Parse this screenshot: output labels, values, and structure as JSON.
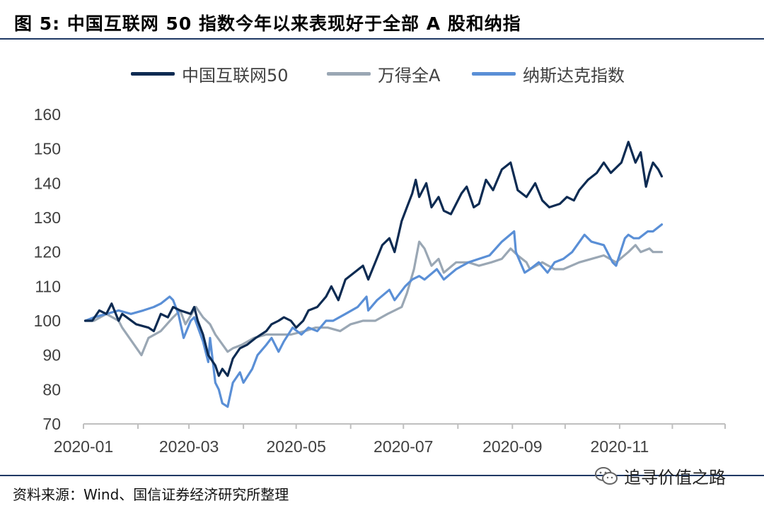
{
  "title": "图 5: 中国互联网 50 指数今年以来表现好于全部 A 股和纳指",
  "source": "资料来源：Wind、国信证券经济研究所整理",
  "watermark": {
    "text": "追寻价值之路",
    "icon": "wechat-icon"
  },
  "chart_data": {
    "type": "line",
    "legend_position": "top",
    "grid": false,
    "ylim": [
      70,
      160
    ],
    "yticks": [
      70,
      80,
      90,
      100,
      110,
      120,
      130,
      140,
      150,
      160
    ],
    "xlim": [
      "2020-01-01",
      "2020-12-31"
    ],
    "xticks": [
      "2020-01-01",
      "2020-03-01",
      "2020-05-01",
      "2020-07-01",
      "2020-09-01",
      "2020-11-01"
    ],
    "xtick_labels": [
      "2020-01",
      "2020-03",
      "2020-05",
      "2020-07",
      "2020-09",
      "2020-11"
    ],
    "series": [
      {
        "name": "中国互联网50",
        "color": "#0d2b52",
        "points": [
          [
            "2020-01-02",
            100
          ],
          [
            "2020-01-06",
            100
          ],
          [
            "2020-01-10",
            103
          ],
          [
            "2020-01-14",
            102
          ],
          [
            "2020-01-17",
            105
          ],
          [
            "2020-01-21",
            100
          ],
          [
            "2020-01-23",
            102
          ],
          [
            "2020-01-31",
            99
          ],
          [
            "2020-02-07",
            98
          ],
          [
            "2020-02-10",
            97
          ],
          [
            "2020-02-14",
            102
          ],
          [
            "2020-02-18",
            101
          ],
          [
            "2020-02-21",
            104
          ],
          [
            "2020-02-25",
            103
          ],
          [
            "2020-03-02",
            102
          ],
          [
            "2020-03-04",
            104
          ],
          [
            "2020-03-06",
            100
          ],
          [
            "2020-03-09",
            96
          ],
          [
            "2020-03-12",
            90
          ],
          [
            "2020-03-16",
            87
          ],
          [
            "2020-03-18",
            84
          ],
          [
            "2020-03-20",
            86
          ],
          [
            "2020-03-23",
            84
          ],
          [
            "2020-03-26",
            89
          ],
          [
            "2020-03-30",
            92
          ],
          [
            "2020-04-03",
            93
          ],
          [
            "2020-04-08",
            95
          ],
          [
            "2020-04-14",
            97
          ],
          [
            "2020-04-17",
            99
          ],
          [
            "2020-04-21",
            100
          ],
          [
            "2020-04-24",
            101
          ],
          [
            "2020-04-28",
            100
          ],
          [
            "2020-05-01",
            98
          ],
          [
            "2020-05-05",
            100
          ],
          [
            "2020-05-08",
            103
          ],
          [
            "2020-05-13",
            104
          ],
          [
            "2020-05-18",
            107
          ],
          [
            "2020-05-21",
            110
          ],
          [
            "2020-05-25",
            106
          ],
          [
            "2020-05-29",
            112
          ],
          [
            "2020-06-03",
            114
          ],
          [
            "2020-06-08",
            116
          ],
          [
            "2020-06-11",
            112
          ],
          [
            "2020-06-15",
            117
          ],
          [
            "2020-06-19",
            122
          ],
          [
            "2020-06-23",
            124
          ],
          [
            "2020-06-26",
            120
          ],
          [
            "2020-06-30",
            129
          ],
          [
            "2020-07-03",
            133
          ],
          [
            "2020-07-06",
            137
          ],
          [
            "2020-07-08",
            141
          ],
          [
            "2020-07-10",
            136
          ],
          [
            "2020-07-14",
            140
          ],
          [
            "2020-07-17",
            133
          ],
          [
            "2020-07-21",
            136
          ],
          [
            "2020-07-24",
            132
          ],
          [
            "2020-07-28",
            131
          ],
          [
            "2020-08-03",
            137
          ],
          [
            "2020-08-06",
            139
          ],
          [
            "2020-08-10",
            133
          ],
          [
            "2020-08-13",
            134
          ],
          [
            "2020-08-17",
            141
          ],
          [
            "2020-08-21",
            138
          ],
          [
            "2020-08-26",
            144
          ],
          [
            "2020-08-31",
            146
          ],
          [
            "2020-09-04",
            138
          ],
          [
            "2020-09-09",
            136
          ],
          [
            "2020-09-14",
            140
          ],
          [
            "2020-09-18",
            135
          ],
          [
            "2020-09-22",
            133
          ],
          [
            "2020-09-28",
            134
          ],
          [
            "2020-10-02",
            136
          ],
          [
            "2020-10-06",
            135
          ],
          [
            "2020-10-09",
            138
          ],
          [
            "2020-10-14",
            141
          ],
          [
            "2020-10-19",
            143
          ],
          [
            "2020-10-23",
            146
          ],
          [
            "2020-10-27",
            143
          ],
          [
            "2020-11-02",
            146
          ],
          [
            "2020-11-06",
            152
          ],
          [
            "2020-11-10",
            146
          ],
          [
            "2020-11-13",
            149
          ],
          [
            "2020-11-16",
            139
          ],
          [
            "2020-11-18",
            143
          ],
          [
            "2020-11-20",
            146
          ],
          [
            "2020-11-23",
            144
          ],
          [
            "2020-11-25",
            142
          ]
        ]
      },
      {
        "name": "万得全A",
        "color": "#9aa7b4",
        "points": [
          [
            "2020-01-02",
            100
          ],
          [
            "2020-01-07",
            100
          ],
          [
            "2020-01-14",
            102
          ],
          [
            "2020-01-21",
            100
          ],
          [
            "2020-01-23",
            98
          ],
          [
            "2020-02-03",
            90
          ],
          [
            "2020-02-07",
            95
          ],
          [
            "2020-02-14",
            97
          ],
          [
            "2020-02-21",
            101
          ],
          [
            "2020-02-25",
            103
          ],
          [
            "2020-02-28",
            99
          ],
          [
            "2020-03-05",
            104
          ],
          [
            "2020-03-09",
            101
          ],
          [
            "2020-03-13",
            99
          ],
          [
            "2020-03-16",
            96
          ],
          [
            "2020-03-23",
            91
          ],
          [
            "2020-03-26",
            92
          ],
          [
            "2020-03-31",
            93
          ],
          [
            "2020-04-07",
            95
          ],
          [
            "2020-04-14",
            96
          ],
          [
            "2020-04-21",
            96
          ],
          [
            "2020-04-28",
            96
          ],
          [
            "2020-05-06",
            97
          ],
          [
            "2020-05-12",
            98
          ],
          [
            "2020-05-19",
            98
          ],
          [
            "2020-05-26",
            97
          ],
          [
            "2020-06-01",
            99
          ],
          [
            "2020-06-08",
            100
          ],
          [
            "2020-06-15",
            100
          ],
          [
            "2020-06-22",
            102
          ],
          [
            "2020-06-30",
            104
          ],
          [
            "2020-07-03",
            108
          ],
          [
            "2020-07-07",
            115
          ],
          [
            "2020-07-10",
            123
          ],
          [
            "2020-07-13",
            121
          ],
          [
            "2020-07-17",
            116
          ],
          [
            "2020-07-21",
            118
          ],
          [
            "2020-07-24",
            114
          ],
          [
            "2020-07-31",
            117
          ],
          [
            "2020-08-07",
            117
          ],
          [
            "2020-08-13",
            116
          ],
          [
            "2020-08-20",
            117
          ],
          [
            "2020-08-26",
            118
          ],
          [
            "2020-08-31",
            121
          ],
          [
            "2020-09-04",
            119
          ],
          [
            "2020-09-09",
            117
          ],
          [
            "2020-09-11",
            115
          ],
          [
            "2020-09-18",
            117
          ],
          [
            "2020-09-25",
            115
          ],
          [
            "2020-09-30",
            115
          ],
          [
            "2020-10-09",
            117
          ],
          [
            "2020-10-16",
            118
          ],
          [
            "2020-10-23",
            119
          ],
          [
            "2020-10-30",
            117
          ],
          [
            "2020-11-06",
            120
          ],
          [
            "2020-11-10",
            122
          ],
          [
            "2020-11-13",
            120
          ],
          [
            "2020-11-18",
            121
          ],
          [
            "2020-11-20",
            120
          ],
          [
            "2020-11-25",
            120
          ]
        ]
      },
      {
        "name": "纳斯达克指数",
        "color": "#5a8fd6",
        "points": [
          [
            "2020-01-02",
            100
          ],
          [
            "2020-01-07",
            101
          ],
          [
            "2020-01-14",
            102
          ],
          [
            "2020-01-21",
            103
          ],
          [
            "2020-01-28",
            102
          ],
          [
            "2020-02-04",
            103
          ],
          [
            "2020-02-10",
            104
          ],
          [
            "2020-02-14",
            105
          ],
          [
            "2020-02-19",
            107
          ],
          [
            "2020-02-21",
            106
          ],
          [
            "2020-02-24",
            102
          ],
          [
            "2020-02-27",
            95
          ],
          [
            "2020-03-02",
            100
          ],
          [
            "2020-03-04",
            101
          ],
          [
            "2020-03-09",
            94
          ],
          [
            "2020-03-12",
            88
          ],
          [
            "2020-03-13",
            95
          ],
          [
            "2020-03-16",
            82
          ],
          [
            "2020-03-18",
            80
          ],
          [
            "2020-03-20",
            76
          ],
          [
            "2020-03-23",
            75
          ],
          [
            "2020-03-26",
            82
          ],
          [
            "2020-03-30",
            85
          ],
          [
            "2020-04-01",
            82
          ],
          [
            "2020-04-06",
            86
          ],
          [
            "2020-04-09",
            90
          ],
          [
            "2020-04-14",
            93
          ],
          [
            "2020-04-17",
            95
          ],
          [
            "2020-04-21",
            91
          ],
          [
            "2020-04-24",
            94
          ],
          [
            "2020-04-29",
            98
          ],
          [
            "2020-05-04",
            96
          ],
          [
            "2020-05-08",
            98
          ],
          [
            "2020-05-13",
            97
          ],
          [
            "2020-05-18",
            100
          ],
          [
            "2020-05-22",
            100
          ],
          [
            "2020-05-29",
            102
          ],
          [
            "2020-06-05",
            104
          ],
          [
            "2020-06-10",
            107
          ],
          [
            "2020-06-11",
            103
          ],
          [
            "2020-06-16",
            106
          ],
          [
            "2020-06-23",
            109
          ],
          [
            "2020-06-26",
            106
          ],
          [
            "2020-07-02",
            110
          ],
          [
            "2020-07-06",
            112
          ],
          [
            "2020-07-10",
            113
          ],
          [
            "2020-07-13",
            112
          ],
          [
            "2020-07-20",
            115
          ],
          [
            "2020-07-24",
            112
          ],
          [
            "2020-07-31",
            115
          ],
          [
            "2020-08-07",
            117
          ],
          [
            "2020-08-13",
            118
          ],
          [
            "2020-08-19",
            119
          ],
          [
            "2020-08-26",
            123
          ],
          [
            "2020-09-02",
            126
          ],
          [
            "2020-09-03",
            120
          ],
          [
            "2020-09-08",
            114
          ],
          [
            "2020-09-11",
            115
          ],
          [
            "2020-09-16",
            117
          ],
          [
            "2020-09-21",
            114
          ],
          [
            "2020-09-25",
            117
          ],
          [
            "2020-09-30",
            118
          ],
          [
            "2020-10-05",
            120
          ],
          [
            "2020-10-12",
            125
          ],
          [
            "2020-10-16",
            123
          ],
          [
            "2020-10-23",
            122
          ],
          [
            "2020-10-28",
            117
          ],
          [
            "2020-10-30",
            116
          ],
          [
            "2020-11-04",
            124
          ],
          [
            "2020-11-06",
            125
          ],
          [
            "2020-11-09",
            124
          ],
          [
            "2020-11-12",
            124
          ],
          [
            "2020-11-17",
            126
          ],
          [
            "2020-11-20",
            126
          ],
          [
            "2020-11-25",
            128
          ]
        ]
      }
    ]
  }
}
